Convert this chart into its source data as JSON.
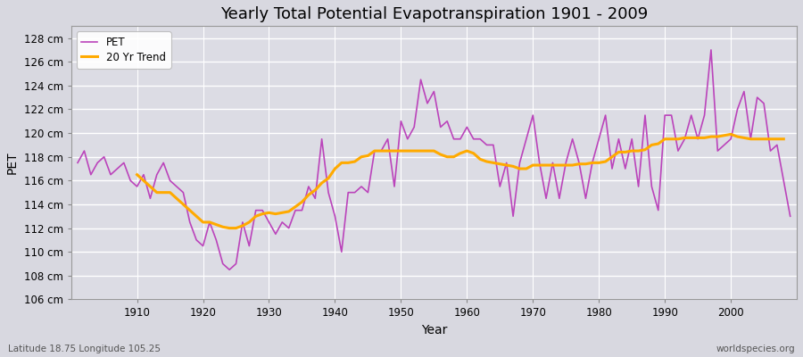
{
  "title": "Yearly Total Potential Evapotranspiration 1901 - 2009",
  "xlabel": "Year",
  "ylabel": "PET",
  "subtitle_left": "Latitude 18.75 Longitude 105.25",
  "subtitle_right": "worldspecies.org",
  "pet_color": "#bb44bb",
  "trend_color": "#ffaa00",
  "fig_background": "#d8d8e0",
  "plot_background": "#dcdce4",
  "grid_color": "#ffffff",
  "ylim": [
    106,
    129
  ],
  "ytick_step": 2,
  "years": [
    1901,
    1902,
    1903,
    1904,
    1905,
    1906,
    1907,
    1908,
    1909,
    1910,
    1911,
    1912,
    1913,
    1914,
    1915,
    1916,
    1917,
    1918,
    1919,
    1920,
    1921,
    1922,
    1923,
    1924,
    1925,
    1926,
    1927,
    1928,
    1929,
    1930,
    1931,
    1932,
    1933,
    1934,
    1935,
    1936,
    1937,
    1938,
    1939,
    1940,
    1941,
    1942,
    1943,
    1944,
    1945,
    1946,
    1947,
    1948,
    1949,
    1950,
    1951,
    1952,
    1953,
    1954,
    1955,
    1956,
    1957,
    1958,
    1959,
    1960,
    1961,
    1962,
    1963,
    1964,
    1965,
    1966,
    1967,
    1968,
    1969,
    1970,
    1971,
    1972,
    1973,
    1974,
    1975,
    1976,
    1977,
    1978,
    1979,
    1980,
    1981,
    1982,
    1983,
    1984,
    1985,
    1986,
    1987,
    1988,
    1989,
    1990,
    1991,
    1992,
    1993,
    1994,
    1995,
    1996,
    1997,
    1998,
    1999,
    2000,
    2001,
    2002,
    2003,
    2004,
    2005,
    2006,
    2007,
    2008,
    2009
  ],
  "pet_values": [
    117.5,
    118.5,
    116.5,
    117.5,
    118.0,
    116.5,
    117.0,
    117.5,
    116.0,
    115.5,
    116.5,
    114.5,
    116.5,
    117.5,
    116.0,
    115.5,
    115.0,
    112.5,
    111.0,
    110.5,
    112.5,
    111.0,
    109.0,
    108.5,
    109.0,
    112.5,
    110.5,
    113.5,
    113.5,
    112.5,
    111.5,
    112.5,
    112.0,
    113.5,
    113.5,
    115.5,
    114.5,
    119.5,
    115.0,
    113.0,
    110.0,
    115.0,
    115.0,
    115.5,
    115.0,
    118.5,
    118.5,
    119.5,
    115.5,
    121.0,
    119.5,
    120.5,
    124.5,
    122.5,
    123.5,
    120.5,
    121.0,
    119.5,
    119.5,
    120.5,
    119.5,
    119.5,
    119.0,
    119.0,
    115.5,
    117.5,
    113.0,
    117.5,
    119.5,
    121.5,
    117.5,
    114.5,
    117.5,
    114.5,
    117.5,
    119.5,
    117.5,
    114.5,
    117.5,
    119.5,
    121.5,
    117.0,
    119.5,
    117.0,
    119.5,
    115.5,
    121.5,
    115.5,
    113.5,
    121.5,
    121.5,
    118.5,
    119.5,
    121.5,
    119.5,
    121.5,
    127.0,
    118.5,
    119.0,
    119.5,
    122.0,
    123.5,
    119.5,
    123.0,
    122.5,
    118.5,
    119.0,
    116.0,
    113.0
  ],
  "trend_values": [
    null,
    null,
    null,
    null,
    null,
    null,
    null,
    null,
    null,
    116.5,
    116.0,
    115.5,
    115.0,
    115.0,
    115.0,
    114.5,
    114.0,
    113.5,
    113.0,
    112.5,
    112.5,
    112.3,
    112.1,
    112.0,
    112.0,
    112.2,
    112.5,
    113.0,
    113.2,
    113.3,
    113.2,
    113.3,
    113.4,
    113.8,
    114.2,
    114.8,
    115.2,
    115.8,
    116.2,
    117.0,
    117.5,
    117.5,
    117.6,
    118.0,
    118.1,
    118.5,
    118.5,
    118.5,
    118.5,
    118.5,
    118.5,
    118.5,
    118.5,
    118.5,
    118.5,
    118.2,
    118.0,
    118.0,
    118.3,
    118.5,
    118.3,
    117.8,
    117.6,
    117.5,
    117.4,
    117.3,
    117.2,
    117.0,
    117.0,
    117.3,
    117.3,
    117.3,
    117.3,
    117.3,
    117.3,
    117.3,
    117.4,
    117.4,
    117.5,
    117.5,
    117.6,
    118.0,
    118.4,
    118.4,
    118.5,
    118.5,
    118.6,
    119.0,
    119.1,
    119.5,
    119.5,
    119.5,
    119.6,
    119.6,
    119.6,
    119.6,
    119.7,
    119.7,
    119.8,
    119.9,
    119.7,
    119.6,
    119.5,
    119.5,
    119.5,
    119.5,
    119.5,
    119.5,
    null
  ]
}
